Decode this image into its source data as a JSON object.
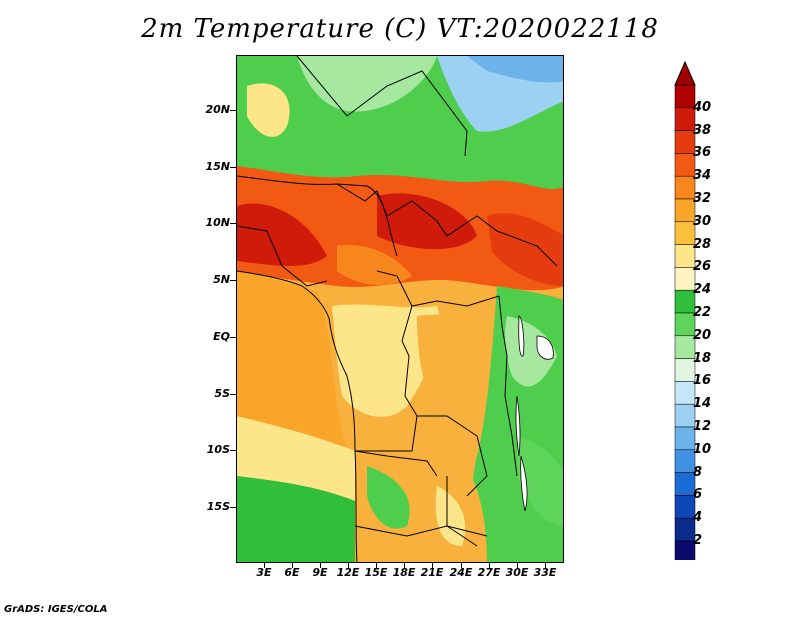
{
  "title": "2m Temperature (C) VT:2020022118",
  "footer": "GrADS: IGES/COLA",
  "lat_labels": [
    "20N",
    "15N",
    "10N",
    "5N",
    "EQ",
    "5S",
    "10S",
    "15S"
  ],
  "lon_labels": [
    "3E",
    "6E",
    "9E",
    "12E",
    "15E",
    "18E",
    "21E",
    "24E",
    "27E",
    "30E",
    "33E"
  ],
  "colorbar": {
    "labels": [
      "40",
      "38",
      "36",
      "34",
      "32",
      "30",
      "28",
      "26",
      "24",
      "22",
      "20",
      "18",
      "16",
      "14",
      "12",
      "10",
      "8",
      "6",
      "4",
      "2"
    ],
    "colors": [
      "#b00000",
      "#d01a0a",
      "#e43c0e",
      "#f25a14",
      "#f7871c",
      "#f9a52a",
      "#fbc03c",
      "#fde68a",
      "#fdf4c2",
      "#2fbf3a",
      "#5fd45a",
      "#a7e8a0",
      "#e0f6e0",
      "#c4e6f8",
      "#9dd1f3",
      "#6cb3ec",
      "#3f92e3",
      "#1c6cd6",
      "#0d47b8",
      "#0a2a8c",
      "#0b0a6e"
    ],
    "top_arrow_color": "#a00000",
    "bottom_arrow_color": "#e6e6f5"
  }
}
